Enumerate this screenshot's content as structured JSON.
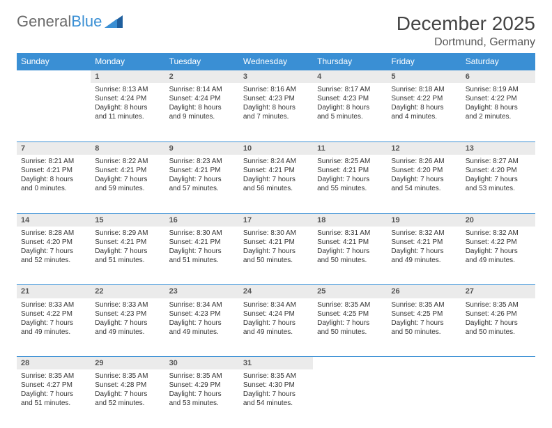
{
  "logo": {
    "text1": "General",
    "text2": "Blue"
  },
  "title": "December 2025",
  "location": "Dortmund, Germany",
  "colors": {
    "header_bg": "#3a8fd4",
    "header_text": "#ffffff",
    "daynum_bg": "#ebebeb",
    "border": "#3a8fd4",
    "body_text": "#333333",
    "title_text": "#444444"
  },
  "weekdays": [
    "Sunday",
    "Monday",
    "Tuesday",
    "Wednesday",
    "Thursday",
    "Friday",
    "Saturday"
  ],
  "weeks": [
    [
      null,
      {
        "day": "1",
        "sunrise": "Sunrise: 8:13 AM",
        "sunset": "Sunset: 4:24 PM",
        "daylight": "Daylight: 8 hours and 11 minutes."
      },
      {
        "day": "2",
        "sunrise": "Sunrise: 8:14 AM",
        "sunset": "Sunset: 4:24 PM",
        "daylight": "Daylight: 8 hours and 9 minutes."
      },
      {
        "day": "3",
        "sunrise": "Sunrise: 8:16 AM",
        "sunset": "Sunset: 4:23 PM",
        "daylight": "Daylight: 8 hours and 7 minutes."
      },
      {
        "day": "4",
        "sunrise": "Sunrise: 8:17 AM",
        "sunset": "Sunset: 4:23 PM",
        "daylight": "Daylight: 8 hours and 5 minutes."
      },
      {
        "day": "5",
        "sunrise": "Sunrise: 8:18 AM",
        "sunset": "Sunset: 4:22 PM",
        "daylight": "Daylight: 8 hours and 4 minutes."
      },
      {
        "day": "6",
        "sunrise": "Sunrise: 8:19 AM",
        "sunset": "Sunset: 4:22 PM",
        "daylight": "Daylight: 8 hours and 2 minutes."
      }
    ],
    [
      {
        "day": "7",
        "sunrise": "Sunrise: 8:21 AM",
        "sunset": "Sunset: 4:21 PM",
        "daylight": "Daylight: 8 hours and 0 minutes."
      },
      {
        "day": "8",
        "sunrise": "Sunrise: 8:22 AM",
        "sunset": "Sunset: 4:21 PM",
        "daylight": "Daylight: 7 hours and 59 minutes."
      },
      {
        "day": "9",
        "sunrise": "Sunrise: 8:23 AM",
        "sunset": "Sunset: 4:21 PM",
        "daylight": "Daylight: 7 hours and 57 minutes."
      },
      {
        "day": "10",
        "sunrise": "Sunrise: 8:24 AM",
        "sunset": "Sunset: 4:21 PM",
        "daylight": "Daylight: 7 hours and 56 minutes."
      },
      {
        "day": "11",
        "sunrise": "Sunrise: 8:25 AM",
        "sunset": "Sunset: 4:21 PM",
        "daylight": "Daylight: 7 hours and 55 minutes."
      },
      {
        "day": "12",
        "sunrise": "Sunrise: 8:26 AM",
        "sunset": "Sunset: 4:20 PM",
        "daylight": "Daylight: 7 hours and 54 minutes."
      },
      {
        "day": "13",
        "sunrise": "Sunrise: 8:27 AM",
        "sunset": "Sunset: 4:20 PM",
        "daylight": "Daylight: 7 hours and 53 minutes."
      }
    ],
    [
      {
        "day": "14",
        "sunrise": "Sunrise: 8:28 AM",
        "sunset": "Sunset: 4:20 PM",
        "daylight": "Daylight: 7 hours and 52 minutes."
      },
      {
        "day": "15",
        "sunrise": "Sunrise: 8:29 AM",
        "sunset": "Sunset: 4:21 PM",
        "daylight": "Daylight: 7 hours and 51 minutes."
      },
      {
        "day": "16",
        "sunrise": "Sunrise: 8:30 AM",
        "sunset": "Sunset: 4:21 PM",
        "daylight": "Daylight: 7 hours and 51 minutes."
      },
      {
        "day": "17",
        "sunrise": "Sunrise: 8:30 AM",
        "sunset": "Sunset: 4:21 PM",
        "daylight": "Daylight: 7 hours and 50 minutes."
      },
      {
        "day": "18",
        "sunrise": "Sunrise: 8:31 AM",
        "sunset": "Sunset: 4:21 PM",
        "daylight": "Daylight: 7 hours and 50 minutes."
      },
      {
        "day": "19",
        "sunrise": "Sunrise: 8:32 AM",
        "sunset": "Sunset: 4:21 PM",
        "daylight": "Daylight: 7 hours and 49 minutes."
      },
      {
        "day": "20",
        "sunrise": "Sunrise: 8:32 AM",
        "sunset": "Sunset: 4:22 PM",
        "daylight": "Daylight: 7 hours and 49 minutes."
      }
    ],
    [
      {
        "day": "21",
        "sunrise": "Sunrise: 8:33 AM",
        "sunset": "Sunset: 4:22 PM",
        "daylight": "Daylight: 7 hours and 49 minutes."
      },
      {
        "day": "22",
        "sunrise": "Sunrise: 8:33 AM",
        "sunset": "Sunset: 4:23 PM",
        "daylight": "Daylight: 7 hours and 49 minutes."
      },
      {
        "day": "23",
        "sunrise": "Sunrise: 8:34 AM",
        "sunset": "Sunset: 4:23 PM",
        "daylight": "Daylight: 7 hours and 49 minutes."
      },
      {
        "day": "24",
        "sunrise": "Sunrise: 8:34 AM",
        "sunset": "Sunset: 4:24 PM",
        "daylight": "Daylight: 7 hours and 49 minutes."
      },
      {
        "day": "25",
        "sunrise": "Sunrise: 8:35 AM",
        "sunset": "Sunset: 4:25 PM",
        "daylight": "Daylight: 7 hours and 50 minutes."
      },
      {
        "day": "26",
        "sunrise": "Sunrise: 8:35 AM",
        "sunset": "Sunset: 4:25 PM",
        "daylight": "Daylight: 7 hours and 50 minutes."
      },
      {
        "day": "27",
        "sunrise": "Sunrise: 8:35 AM",
        "sunset": "Sunset: 4:26 PM",
        "daylight": "Daylight: 7 hours and 50 minutes."
      }
    ],
    [
      {
        "day": "28",
        "sunrise": "Sunrise: 8:35 AM",
        "sunset": "Sunset: 4:27 PM",
        "daylight": "Daylight: 7 hours and 51 minutes."
      },
      {
        "day": "29",
        "sunrise": "Sunrise: 8:35 AM",
        "sunset": "Sunset: 4:28 PM",
        "daylight": "Daylight: 7 hours and 52 minutes."
      },
      {
        "day": "30",
        "sunrise": "Sunrise: 8:35 AM",
        "sunset": "Sunset: 4:29 PM",
        "daylight": "Daylight: 7 hours and 53 minutes."
      },
      {
        "day": "31",
        "sunrise": "Sunrise: 8:35 AM",
        "sunset": "Sunset: 4:30 PM",
        "daylight": "Daylight: 7 hours and 54 minutes."
      },
      null,
      null,
      null
    ]
  ]
}
